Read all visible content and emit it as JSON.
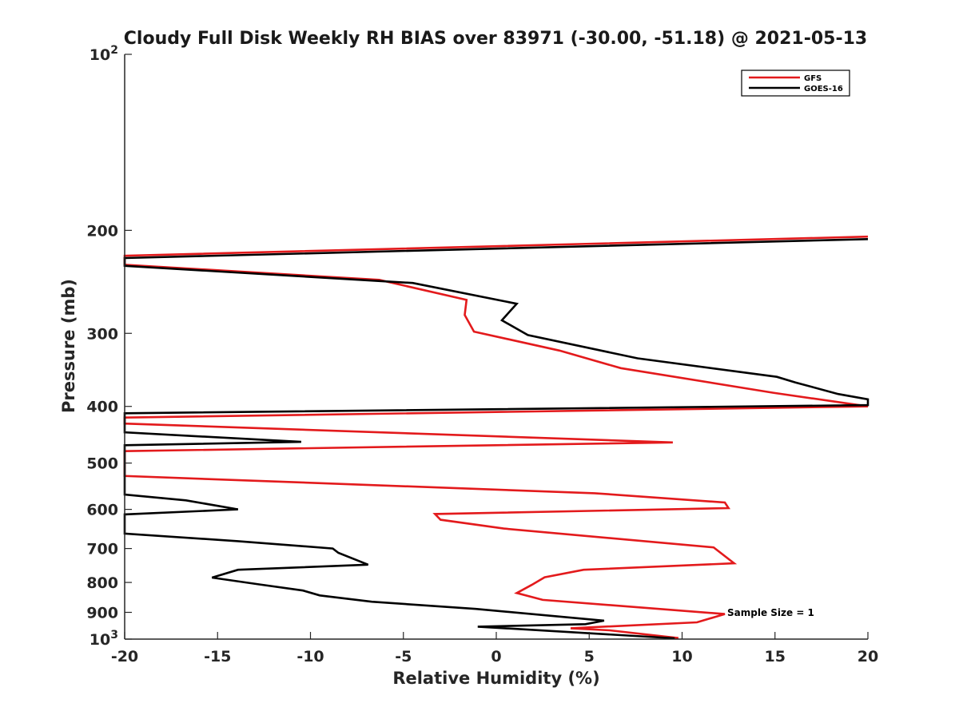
{
  "chart_data": {
    "type": "line",
    "title": "Cloudy Full Disk Weekly RH BIAS over 83971 (-30.00, -51.18) @ 2021-05-13",
    "xlabel": "Relative Humidity (%)",
    "ylabel": "Pressure (mb)",
    "xlim": [
      -20,
      20
    ],
    "ylim": [
      100,
      1000
    ],
    "yscale": "log",
    "y_reversed": true,
    "xticks": [
      -20,
      -15,
      -10,
      -5,
      0,
      5,
      10,
      15,
      20
    ],
    "xtick_labels": [
      "-20",
      "-15",
      "-10",
      "-5",
      "0",
      "5",
      "10",
      "15",
      "20"
    ],
    "yticks": [
      {
        "value": 100,
        "label": "10",
        "sup": "2"
      },
      {
        "value": 200,
        "label": "200",
        "sup": ""
      },
      {
        "value": 300,
        "label": "300",
        "sup": ""
      },
      {
        "value": 400,
        "label": "400",
        "sup": ""
      },
      {
        "value": 500,
        "label": "500",
        "sup": ""
      },
      {
        "value": 600,
        "label": "600",
        "sup": ""
      },
      {
        "value": 700,
        "label": "700",
        "sup": ""
      },
      {
        "value": 800,
        "label": "800",
        "sup": ""
      },
      {
        "value": 900,
        "label": "900",
        "sup": ""
      },
      {
        "value": 1000,
        "label": "10",
        "sup": "3"
      }
    ],
    "grid": false,
    "legend_position": "top-right",
    "annotation": "Sample Size = 1",
    "series": [
      {
        "name": "GFS",
        "color": "#e31a1c",
        "points": [
          [
            20,
            205
          ],
          [
            -20,
            221
          ],
          [
            -20,
            229
          ],
          [
            -6.3,
            243
          ],
          [
            -1.6,
            263
          ],
          [
            -1.7,
            279
          ],
          [
            -1.2,
            298
          ],
          [
            3.4,
            321
          ],
          [
            6.7,
            344
          ],
          [
            14.9,
            379
          ],
          [
            20,
            400
          ],
          [
            -20,
            418
          ],
          [
            -20,
            428
          ],
          [
            9.5,
            461
          ],
          [
            -20,
            477
          ],
          [
            -20,
            526
          ],
          [
            5.3,
            563
          ],
          [
            12.3,
            584
          ],
          [
            12.5,
            597
          ],
          [
            -3.3,
            611
          ],
          [
            -3.0,
            625
          ],
          [
            0.4,
            647
          ],
          [
            11.7,
            697
          ],
          [
            12.8,
            742
          ],
          [
            4.7,
            761
          ],
          [
            2.6,
            784
          ],
          [
            1.9,
            808
          ],
          [
            1.1,
            834
          ],
          [
            2.5,
            857
          ],
          [
            12.3,
            906
          ],
          [
            10.8,
            936
          ],
          [
            4.0,
            958
          ],
          [
            6.1,
            966
          ],
          [
            9.8,
            996
          ]
        ]
      },
      {
        "name": "GOES-16",
        "color": "#000000",
        "points": [
          [
            20,
            207
          ],
          [
            -20,
            223
          ],
          [
            -20,
            230
          ],
          [
            -4.5,
            246
          ],
          [
            1.1,
            267
          ],
          [
            0.3,
            285
          ],
          [
            1.7,
            302
          ],
          [
            7.6,
            331
          ],
          [
            15.1,
            356
          ],
          [
            16.1,
            364
          ],
          [
            18.4,
            381
          ],
          [
            20,
            389
          ],
          [
            20,
            398
          ],
          [
            -20,
            411
          ],
          [
            -20,
            443
          ],
          [
            -10.5,
            460
          ],
          [
            -20,
            466
          ],
          [
            -20,
            566
          ],
          [
            -16.7,
            579
          ],
          [
            -13.9,
            600
          ],
          [
            -20,
            612
          ],
          [
            -20,
            660
          ],
          [
            -13.9,
            680
          ],
          [
            -8.8,
            700
          ],
          [
            -8.5,
            712
          ],
          [
            -6.9,
            746
          ],
          [
            -13.9,
            761
          ],
          [
            -15.3,
            785
          ],
          [
            -12.8,
            806
          ],
          [
            -10.4,
            826
          ],
          [
            -9.5,
            842
          ],
          [
            -6.7,
            863
          ],
          [
            -1.1,
            888
          ],
          [
            5.8,
            930
          ],
          [
            4.8,
            943
          ],
          [
            -1.0,
            952
          ],
          [
            9.6,
            997
          ]
        ]
      }
    ]
  }
}
